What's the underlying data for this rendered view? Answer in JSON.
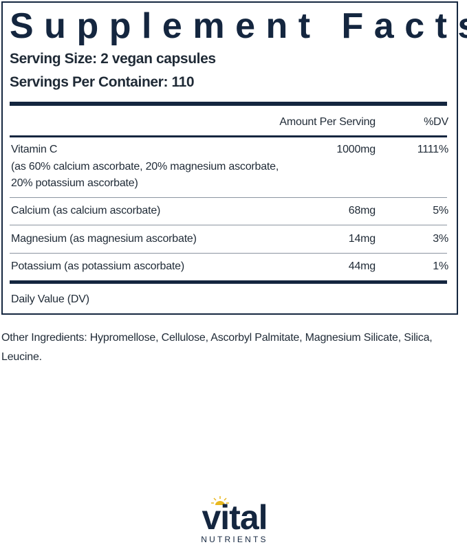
{
  "title": "Supplement Facts",
  "serving_size": "Serving Size: 2 vegan capsules",
  "servings_per_container": "Servings Per Container: 110",
  "headers": {
    "amount": "Amount Per Serving",
    "dv": "%DV"
  },
  "rows": [
    {
      "name": "Vitamin C",
      "detail1": "(as 60% calcium ascorbate, 20% magnesium ascorbate,",
      "detail2": "20% potassium ascorbate)",
      "amount": "1000mg",
      "dv": "1111%"
    },
    {
      "name": "Calcium (as calcium ascorbate)",
      "amount": "68mg",
      "dv": "5%"
    },
    {
      "name": "Magnesium (as magnesium ascorbate)",
      "amount": "14mg",
      "dv": "3%"
    },
    {
      "name": "Potassium (as potassium ascorbate)",
      "amount": "44mg",
      "dv": "1%"
    }
  ],
  "footnote": "Daily Value (DV)",
  "other_ingredients": "Other Ingredients: Hypromellose, Cellulose, Ascorbyl Palmitate, Magnesium Silicate, Silica, Leucine.",
  "logo": {
    "word": "vital",
    "sub": "NUTRIENTS"
  },
  "colors": {
    "navy": "#14263f",
    "sun": "#e8b820"
  }
}
